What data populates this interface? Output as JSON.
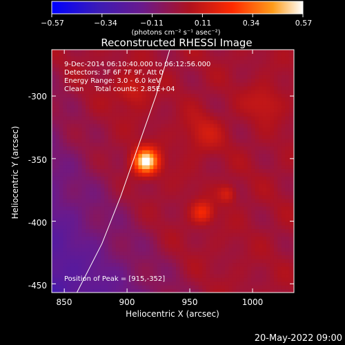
{
  "chart_data": {
    "type": "heatmap",
    "title": "Reconstructed RHESSI Image",
    "xlabel": "Heliocentric X (arcsec)",
    "ylabel": "Heliocentric Y (arcsec)",
    "xlim": [
      840,
      1033
    ],
    "ylim": [
      -457,
      -263
    ],
    "x_ticks": [
      850,
      900,
      950,
      1000
    ],
    "y_ticks": [
      -300,
      -350,
      -400,
      -450
    ],
    "colorbar": {
      "label": "(photons cm⁻² s⁻¹ asec⁻²)",
      "range": [
        -0.57,
        0.57
      ],
      "ticks": [
        "−0.57",
        "−0.34",
        "−0.11",
        "0.11",
        "0.34",
        "0.57"
      ],
      "colors": [
        "#0000ff",
        "#3a1bb8",
        "#6a1a8c",
        "#b0121e",
        "#ff2a00",
        "#ff9c1a",
        "#ffffff"
      ]
    },
    "annotations": {
      "time_range": "9-Dec-2014 06:10:40.000 to 06:12:56.000",
      "detectors": "Detectors: 3F 6F 7F 9F, Att 0",
      "energy": "Energy Range: 3.0 - 6.0 keV",
      "clean": "Clean     Total counts: 2.85E+04",
      "peak": "Position of Peak = [915,-352]"
    },
    "peak": [
      915,
      -352
    ],
    "sources": [
      {
        "x": 915,
        "y": -352,
        "amp": 0.57,
        "sigma": 7
      },
      {
        "x": 960,
        "y": -393,
        "amp": 0.2,
        "sigma": 6
      },
      {
        "x": 980,
        "y": -378,
        "amp": 0.14,
        "sigma": 5
      },
      {
        "x": 905,
        "y": -295,
        "amp": 0.12,
        "sigma": 9
      },
      {
        "x": 1010,
        "y": -305,
        "amp": 0.1,
        "sigma": 10
      },
      {
        "x": 960,
        "y": -330,
        "amp": 0.1,
        "sigma": 11
      }
    ],
    "limb_curve": [
      [
        860,
        -457
      ],
      [
        880,
        -418
      ],
      [
        895,
        -380
      ],
      [
        910,
        -337
      ],
      [
        923,
        -300
      ],
      [
        934,
        -263
      ]
    ]
  },
  "footer": {
    "date": "20-May-2022 09:00"
  }
}
